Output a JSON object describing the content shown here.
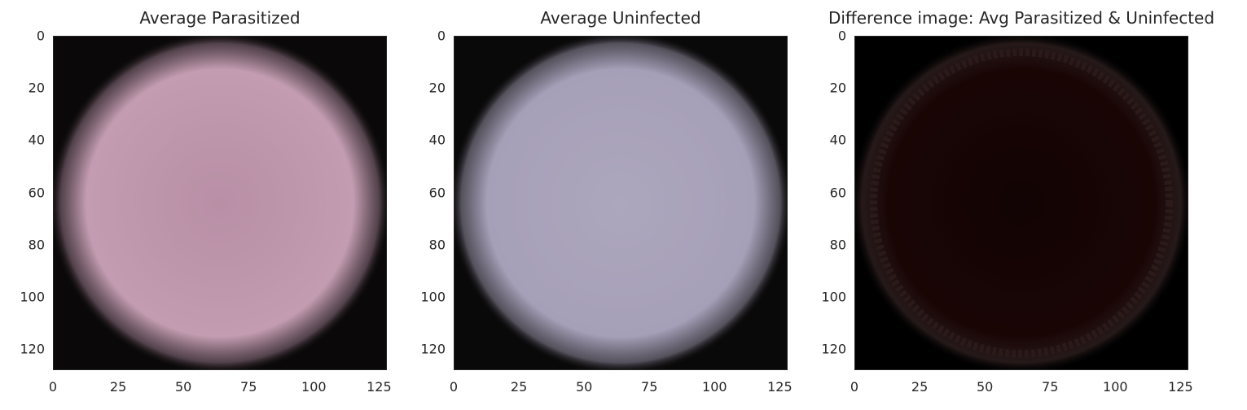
{
  "chart_data": [
    {
      "type": "heatmap",
      "title": "Average Parasitized",
      "xlabel": "",
      "ylabel": "",
      "xlim": [
        0,
        128
      ],
      "ylim": [
        128,
        0
      ],
      "xticks": [
        "0",
        "25",
        "50",
        "75",
        "100",
        "125"
      ],
      "xtick_values": [
        0,
        25,
        50,
        75,
        100,
        125
      ],
      "yticks": [
        "0",
        "20",
        "40",
        "60",
        "80",
        "100",
        "120"
      ],
      "ytick_values": [
        0,
        20,
        40,
        60,
        80,
        100,
        120
      ],
      "grid": false,
      "colors": {
        "center": "#b88fa6",
        "mid": "#c39cb1",
        "edge": "#5a4852",
        "background": "#0a0808"
      }
    },
    {
      "type": "heatmap",
      "title": "Average Uninfected",
      "xlabel": "",
      "ylabel": "",
      "xlim": [
        0,
        128
      ],
      "ylim": [
        128,
        0
      ],
      "xticks": [
        "0",
        "25",
        "50",
        "75",
        "100",
        "125"
      ],
      "xtick_values": [
        0,
        25,
        50,
        75,
        100,
        125
      ],
      "yticks": [
        "0",
        "20",
        "40",
        "60",
        "80",
        "100",
        "120"
      ],
      "ytick_values": [
        0,
        20,
        40,
        60,
        80,
        100,
        120
      ],
      "grid": false,
      "colors": {
        "center": "#ada7bd",
        "mid": "#a69fb8",
        "edge": "#5d5a66",
        "background": "#0a0909"
      }
    },
    {
      "type": "heatmap",
      "title": "Difference image: Avg Parasitized & Uninfected",
      "xlabel": "",
      "ylabel": "",
      "xlim": [
        0,
        128
      ],
      "ylim": [
        128,
        0
      ],
      "xticks": [
        "0",
        "25",
        "50",
        "75",
        "100",
        "125"
      ],
      "xtick_values": [
        0,
        25,
        50,
        75,
        100,
        125
      ],
      "yticks": [
        "0",
        "20",
        "40",
        "60",
        "80",
        "100",
        "120"
      ],
      "ytick_values": [
        0,
        20,
        40,
        60,
        80,
        100,
        120
      ],
      "grid": false,
      "colors": {
        "center": "#120404",
        "mid": "#1a0505",
        "edge": "#2a1c1c",
        "background": "#000000"
      }
    }
  ]
}
